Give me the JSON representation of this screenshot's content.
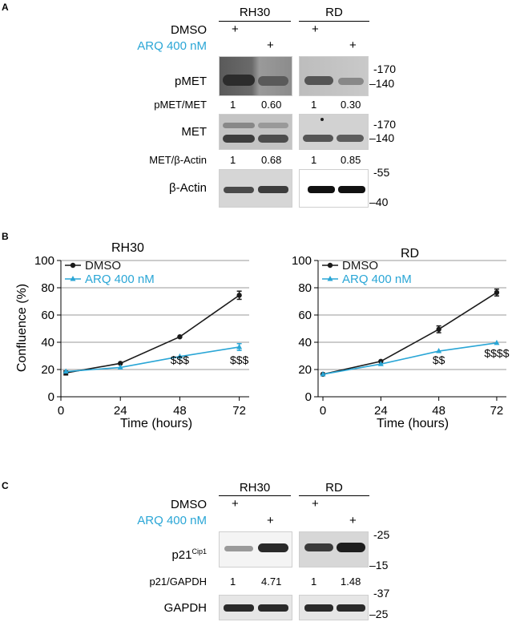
{
  "panels": {
    "a": "A",
    "b": "B",
    "c": "C"
  },
  "cell_lines": [
    "RH30",
    "RD"
  ],
  "treatments": {
    "dmso": "DMSO",
    "arq": "ARQ 400 nM",
    "plus": "+"
  },
  "panel_a": {
    "pmet_label": "pMET",
    "pmet_ratio_label": "pMET/MET",
    "pmet_ratios": [
      "1",
      "0.60",
      "1",
      "0.30"
    ],
    "pmet_mw": [
      "170",
      "140"
    ],
    "met_label": "MET",
    "met_ratio_label": "MET/β-Actin",
    "met_ratios": [
      "1",
      "0.68",
      "1",
      "0.85"
    ],
    "met_mw": [
      "170",
      "140"
    ],
    "actin_label": "β-Actin",
    "actin_mw": [
      "55",
      "40"
    ]
  },
  "panel_c": {
    "p21_label": "p21",
    "p21_sup": "Cip1",
    "p21_ratio_label": "p21/GAPDH",
    "p21_ratios": [
      "1",
      "4.71",
      "1",
      "1.48"
    ],
    "p21_mw": [
      "25",
      "15"
    ],
    "gapdh_label": "GAPDH",
    "gapdh_mw": [
      "37",
      "25"
    ]
  },
  "colors": {
    "dmso": "#1a1a1a",
    "arq": "#2aa6d6"
  },
  "chart_data": [
    {
      "type": "line",
      "title": "RH30",
      "xlabel": "Time (hours)",
      "ylabel": "Confluence (%)",
      "x": [
        2,
        24,
        48,
        72
      ],
      "xticks": [
        0,
        24,
        48,
        72
      ],
      "yticks": [
        0,
        20,
        40,
        60,
        80,
        100
      ],
      "xlim": [
        0,
        76
      ],
      "ylim": [
        0,
        100
      ],
      "grid": "horizontal",
      "legend": "top-left",
      "series": [
        {
          "name": "DMSO",
          "values": [
            17.5,
            24.5,
            44,
            74.5
          ],
          "errors": [
            1.5,
            0.5,
            0.5,
            3
          ]
        },
        {
          "name": "ARQ 400 nM",
          "values": [
            18.5,
            21.5,
            29.5,
            36.5
          ],
          "errors": [
            0.5,
            0.5,
            0.5,
            2.5
          ]
        }
      ],
      "annotations": [
        {
          "x": 48,
          "y": 24,
          "text": "$$$"
        },
        {
          "x": 72,
          "y": 24,
          "text": "$$$"
        }
      ]
    },
    {
      "type": "line",
      "title": "RD",
      "xlabel": "Time (hours)",
      "ylabel": "",
      "x": [
        0,
        24,
        48,
        72
      ],
      "xticks": [
        0,
        24,
        48,
        72
      ],
      "yticks": [
        0,
        20,
        40,
        60,
        80,
        100
      ],
      "xlim": [
        -2,
        76
      ],
      "ylim": [
        0,
        100
      ],
      "grid": "horizontal",
      "legend": "top-left",
      "series": [
        {
          "name": "DMSO",
          "values": [
            16.5,
            26,
            49.5,
            76.5
          ],
          "errors": [
            0.5,
            0.5,
            2.5,
            2.5
          ]
        },
        {
          "name": "ARQ 400 nM",
          "values": [
            16.5,
            24,
            33.5,
            39.5
          ],
          "errors": [
            0.5,
            0.5,
            0.5,
            0.5
          ]
        }
      ],
      "annotations": [
        {
          "x": 48,
          "y": 24,
          "text": "$$"
        },
        {
          "x": 72,
          "y": 29,
          "text": "$$$$"
        }
      ]
    }
  ]
}
